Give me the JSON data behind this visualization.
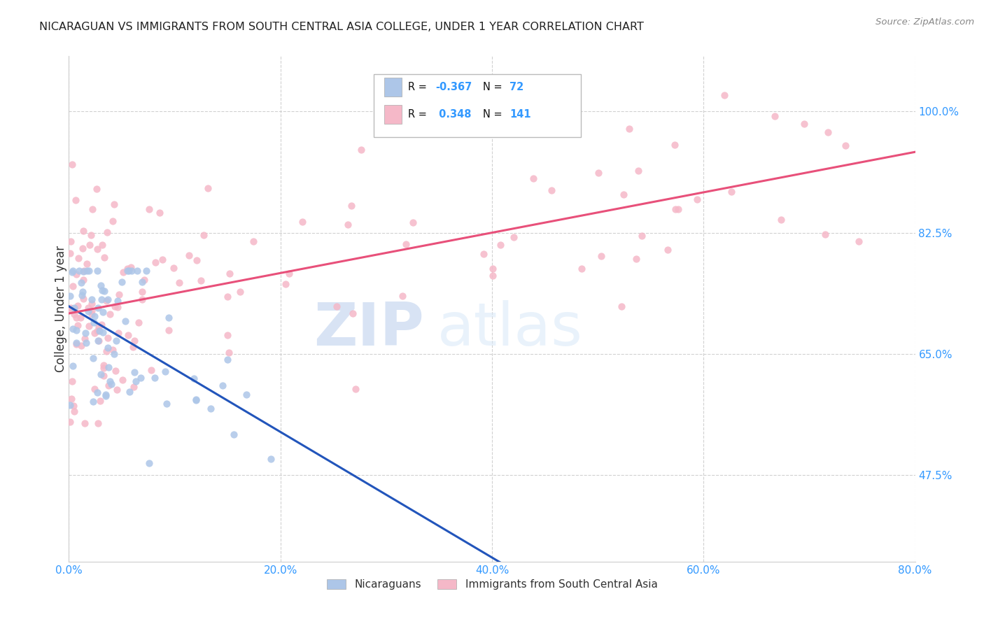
{
  "title": "NICARAGUAN VS IMMIGRANTS FROM SOUTH CENTRAL ASIA COLLEGE, UNDER 1 YEAR CORRELATION CHART",
  "source": "Source: ZipAtlas.com",
  "xlabel_vals": [
    0.0,
    20.0,
    40.0,
    60.0,
    80.0
  ],
  "ylabel": "College, Under 1 year",
  "ylabel_vals": [
    47.5,
    65.0,
    82.5,
    100.0
  ],
  "xlim": [
    0.0,
    80.0
  ],
  "ylim": [
    35.0,
    108.0
  ],
  "blue_R": -0.367,
  "blue_N": 72,
  "pink_R": 0.348,
  "pink_N": 141,
  "blue_color": "#adc6e8",
  "pink_color": "#f5b8c8",
  "blue_line_color": "#2255bb",
  "pink_line_color": "#e8507a",
  "legend_label_blue": "Nicaraguans",
  "legend_label_pink": "Immigrants from South Central Asia",
  "watermark_zip": "ZIP",
  "watermark_atlas": "atlas",
  "background_color": "#ffffff",
  "grid_color": "#cccccc",
  "title_color": "#222222",
  "axis_label_color": "#3399ff",
  "legend_R_color": "#000000",
  "legend_N_color": "#3399ff",
  "legend_val_color": "#3399ff"
}
